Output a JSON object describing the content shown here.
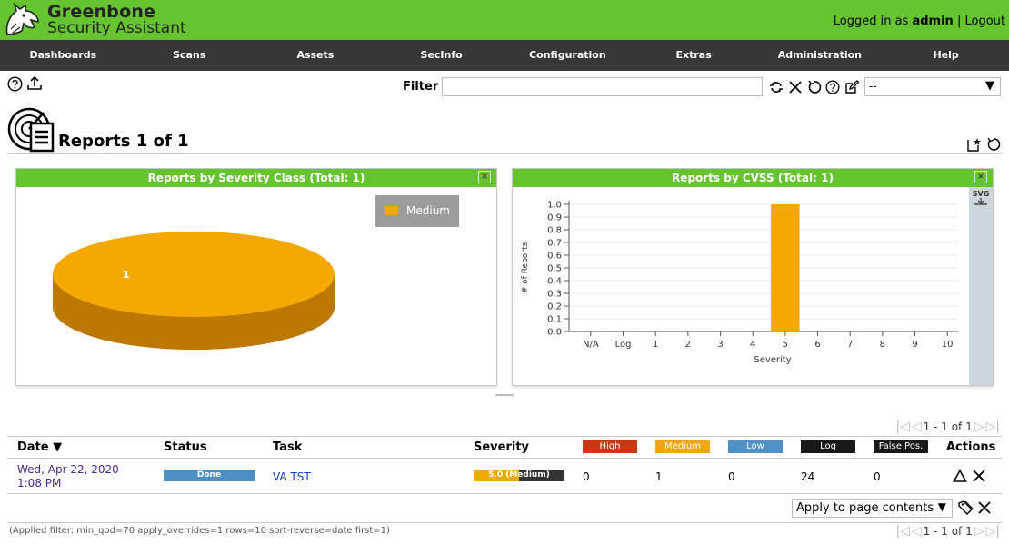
{
  "header": {
    "brand_line1": "Greenbone",
    "brand_line2": "Security Assistant",
    "logged_in_prefix": "Logged in as",
    "user": "admin",
    "separator": "|",
    "logout": "Logout"
  },
  "nav": [
    "Dashboards",
    "Scans",
    "Assets",
    "SecInfo",
    "Configuration",
    "Extras",
    "Administration",
    "Help"
  ],
  "toolbar": {
    "filter_label": "Filter",
    "filter_value": "",
    "filter_select_value": "--"
  },
  "page": {
    "title": "Reports 1 of 1"
  },
  "panels": {
    "severity_class": {
      "title": "Reports by Severity Class (Total: 1)",
      "close": "×",
      "legend": "Medium",
      "pie_label": "1"
    },
    "cvss": {
      "title": "Reports by CVSS (Total: 1)",
      "close": "×",
      "svg_label": "SVG"
    }
  },
  "chart_data": {
    "type": "bar",
    "title": "Reports by CVSS (Total: 1)",
    "xlabel": "Severity",
    "ylabel": "# of Reports",
    "categories": [
      "N/A",
      "Log",
      "1",
      "2",
      "3",
      "4",
      "5",
      "6",
      "7",
      "8",
      "9",
      "10"
    ],
    "values": [
      0,
      0,
      0,
      0,
      0,
      0,
      1,
      0,
      0,
      0,
      0,
      0
    ],
    "yticks": [
      "0.0",
      "0.1",
      "0.2",
      "0.3",
      "0.4",
      "0.5",
      "0.6",
      "0.7",
      "0.8",
      "0.9",
      "1.0"
    ],
    "ylim": [
      0,
      1
    ],
    "bar_color": "#f5a800"
  },
  "pagination": {
    "text": "1 - 1 of 1"
  },
  "table": {
    "headers": {
      "date": "Date ▼",
      "status": "Status",
      "task": "Task",
      "severity": "Severity",
      "actions": "Actions"
    },
    "badges": [
      {
        "label": "High",
        "color": "#c83814"
      },
      {
        "label": "Medium",
        "color": "#f0a519"
      },
      {
        "label": "Low",
        "color": "#4f91c7"
      },
      {
        "label": "Log",
        "color": "#191919"
      },
      {
        "label": "False Pos.",
        "color": "#191919"
      }
    ],
    "rows": [
      {
        "date_line1": "Wed, Apr 22, 2020",
        "date_line2": "1:08 PM",
        "status": "Done",
        "task": "VA TST",
        "severity_text": "5.0 (Medium)",
        "severity_fraction": 0.5,
        "high": "0",
        "medium": "1",
        "low": "0",
        "log": "24",
        "false_pos": "0"
      }
    ]
  },
  "footer": {
    "apply_label": "Apply to page contents",
    "applied_filter": "(Applied filter: min_qod=70 apply_overrides=1 rows=10 sort-reverse=date first=1)"
  }
}
